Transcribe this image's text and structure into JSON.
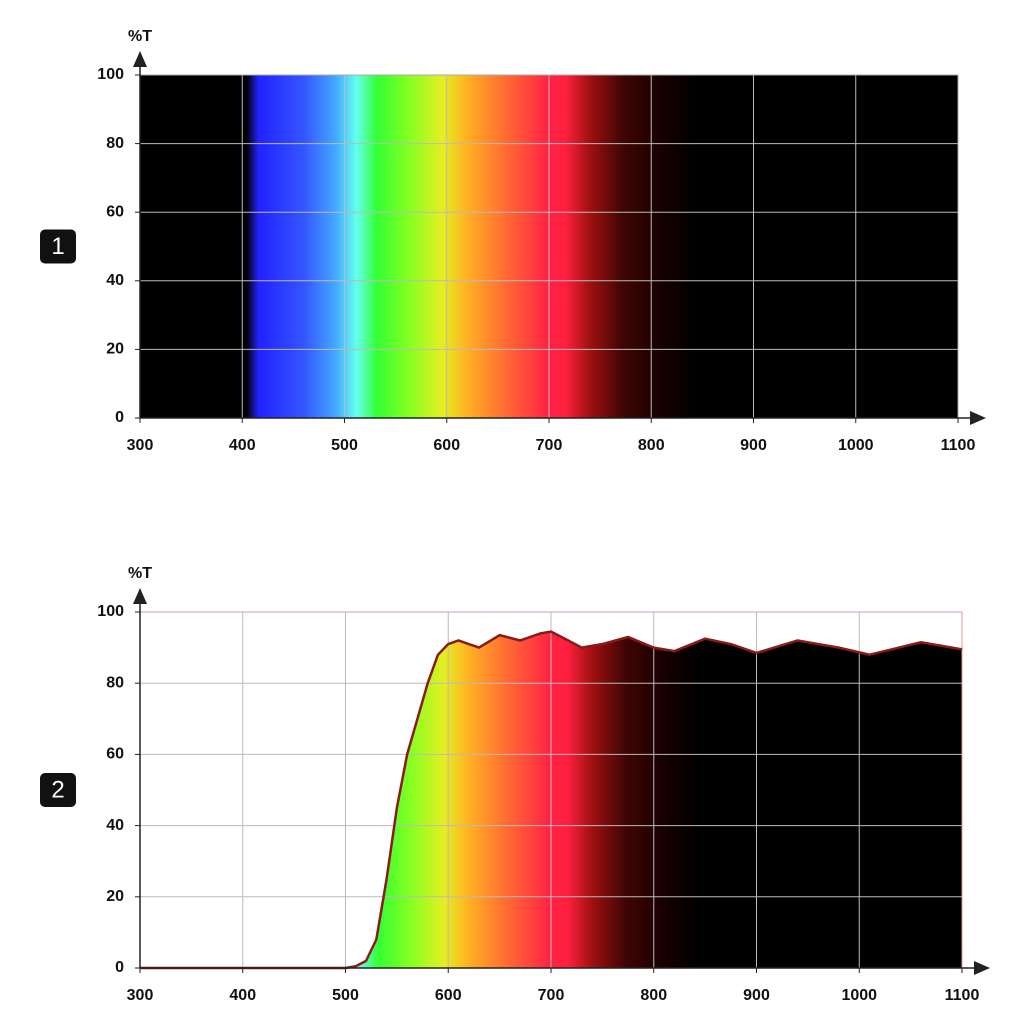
{
  "chart_data": [
    {
      "type": "area",
      "panel_label": "1",
      "y_label": "%T",
      "x": [
        300,
        1100
      ],
      "values": [
        100,
        100
      ],
      "xlim": [
        300,
        1100
      ],
      "xticks": [
        300,
        400,
        500,
        600,
        700,
        800,
        900,
        1000,
        1100
      ],
      "ylim": [
        0,
        100
      ],
      "yticks": [
        0,
        20,
        40,
        60,
        80,
        100
      ],
      "grid": true
    },
    {
      "type": "area",
      "panel_label": "2",
      "y_label": "%T",
      "line_color": "#8b1a1a",
      "x": [
        300,
        400,
        500,
        510,
        520,
        530,
        540,
        550,
        560,
        570,
        580,
        590,
        600,
        610,
        620,
        630,
        650,
        670,
        690,
        700,
        710,
        730,
        750,
        775,
        800,
        820,
        850,
        875,
        900,
        940,
        980,
        1010,
        1060,
        1100
      ],
      "values": [
        0,
        0,
        0,
        0.5,
        2,
        8,
        25,
        45,
        60,
        70,
        80,
        88,
        91,
        92,
        91,
        90,
        93.5,
        92,
        94,
        94.5,
        93,
        90,
        91,
        93,
        90,
        89,
        92.5,
        91,
        88.5,
        92,
        90,
        88,
        91.5,
        89.5
      ],
      "xlim": [
        300,
        1100
      ],
      "xticks": [
        300,
        400,
        500,
        600,
        700,
        800,
        900,
        1000,
        1100
      ],
      "ylim": [
        0,
        100
      ],
      "yticks": [
        0,
        20,
        40,
        60,
        80,
        100
      ],
      "grid": true
    }
  ]
}
